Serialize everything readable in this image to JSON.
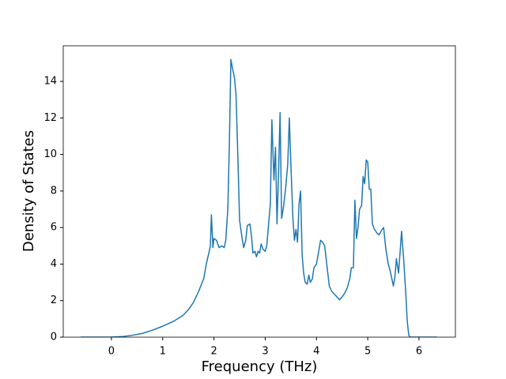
{
  "chart_data": {
    "type": "line",
    "xlabel": "Frequency (THz)",
    "ylabel": "Density of States",
    "color": "#1f77b4",
    "xlim": [
      -0.94,
      6.71
    ],
    "ylim": [
      0,
      15.95
    ],
    "xticks": [
      0,
      1,
      2,
      3,
      4,
      5,
      6
    ],
    "yticks": [
      0,
      2,
      4,
      6,
      8,
      10,
      12,
      14
    ],
    "x": [
      -0.6,
      -0.2,
      0,
      0.2,
      0.4,
      0.6,
      0.8,
      1.0,
      1.2,
      1.4,
      1.5,
      1.6,
      1.7,
      1.8,
      1.85,
      1.9,
      1.93,
      1.95,
      1.98,
      2.0,
      2.05,
      2.1,
      2.15,
      2.2,
      2.23,
      2.27,
      2.3,
      2.33,
      2.37,
      2.4,
      2.43,
      2.47,
      2.5,
      2.55,
      2.58,
      2.62,
      2.65,
      2.7,
      2.73,
      2.76,
      2.8,
      2.83,
      2.86,
      2.89,
      2.92,
      2.96,
      3.0,
      3.03,
      3.06,
      3.1,
      3.13,
      3.17,
      3.2,
      3.23,
      3.26,
      3.29,
      3.32,
      3.36,
      3.4,
      3.44,
      3.47,
      3.5,
      3.54,
      3.57,
      3.6,
      3.63,
      3.66,
      3.69,
      3.72,
      3.75,
      3.78,
      3.82,
      3.85,
      3.88,
      3.92,
      3.95,
      4.0,
      4.05,
      4.08,
      4.12,
      4.16,
      4.2,
      4.25,
      4.3,
      4.4,
      4.45,
      4.5,
      4.55,
      4.6,
      4.65,
      4.68,
      4.72,
      4.75,
      4.78,
      4.81,
      4.84,
      4.88,
      4.91,
      4.94,
      4.97,
      5.0,
      5.03,
      5.06,
      5.09,
      5.13,
      5.18,
      5.22,
      5.28,
      5.31,
      5.35,
      5.4,
      5.44,
      5.5,
      5.53,
      5.56,
      5.6,
      5.63,
      5.66,
      5.7,
      5.74,
      5.77,
      5.8,
      5.83,
      6.35
    ],
    "values": [
      0,
      0,
      0,
      0.03,
      0.1,
      0.2,
      0.38,
      0.6,
      0.85,
      1.2,
      1.5,
      1.9,
      2.5,
      3.2,
      4.0,
      4.6,
      5.0,
      6.7,
      4.9,
      5.4,
      5.3,
      4.9,
      5.0,
      4.9,
      5.3,
      7.0,
      10.5,
      15.2,
      14.6,
      14.2,
      13.3,
      9.5,
      6.4,
      5.4,
      4.9,
      5.3,
      6.1,
      6.2,
      5.6,
      4.6,
      4.7,
      4.4,
      4.7,
      4.6,
      5.1,
      4.8,
      4.7,
      5.0,
      6.0,
      7.3,
      11.9,
      8.6,
      10.4,
      6.2,
      9.0,
      12.3,
      6.5,
      7.2,
      8.2,
      9.5,
      12.0,
      9.5,
      6.5,
      5.3,
      5.9,
      5.2,
      7.3,
      8.0,
      4.5,
      3.5,
      3.0,
      2.9,
      3.4,
      3.0,
      3.2,
      3.8,
      4.0,
      4.8,
      5.3,
      5.2,
      5.0,
      4.0,
      2.8,
      2.5,
      2.2,
      2.05,
      2.2,
      2.4,
      2.7,
      3.2,
      3.8,
      3.8,
      7.5,
      5.4,
      6.0,
      7.0,
      7.2,
      8.8,
      8.4,
      9.7,
      9.6,
      8.1,
      8.1,
      6.2,
      5.9,
      5.7,
      5.6,
      5.9,
      6.0,
      4.9,
      4.0,
      3.6,
      2.8,
      3.3,
      4.3,
      3.5,
      4.6,
      5.8,
      4.3,
      2.5,
      0.9,
      0.1,
      0,
      0
    ]
  }
}
